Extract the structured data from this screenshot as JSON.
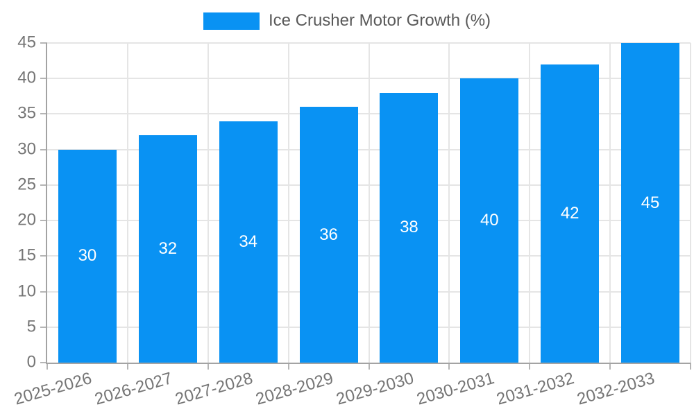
{
  "chart_data": {
    "type": "bar",
    "legend": {
      "label": "Ice Crusher Motor Growth (%)",
      "position": "top"
    },
    "categories": [
      "2025-2026",
      "2026-2027",
      "2027-2028",
      "2028-2029",
      "2029-2030",
      "2030-2031",
      "2031-2032",
      "2032-2033"
    ],
    "series": [
      {
        "name": "Ice Crusher Motor Growth (%)",
        "values": [
          30,
          32,
          34,
          36,
          38,
          40,
          42,
          45
        ]
      }
    ],
    "data_labels_shown": true,
    "xlabel": "",
    "ylabel": "",
    "ylim": [
      0,
      45
    ],
    "ytick_step": 5,
    "yticks": [
      0,
      5,
      10,
      15,
      20,
      25,
      30,
      35,
      40,
      45
    ],
    "grid": true,
    "x_label_rotation_deg": -16,
    "colors": {
      "bar": "#0992F3",
      "grid": "#E5E5E5",
      "axis": "#A3A3A3",
      "tick": "#B5B5B5",
      "axis_label": "#757575",
      "legend_text": "#595959",
      "data_label": "#FFFFFF",
      "background": "#FFFFFF"
    }
  }
}
